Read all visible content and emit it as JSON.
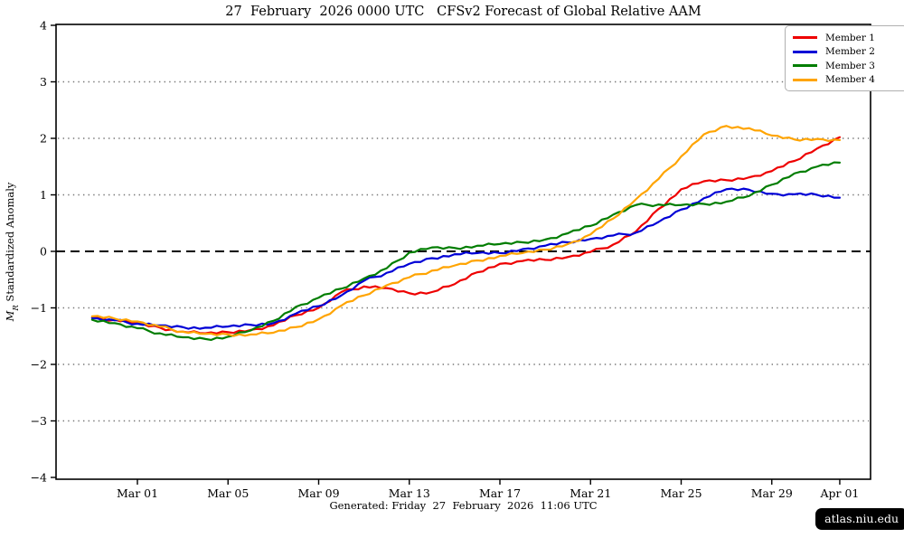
{
  "title": "27  February  2026 0000 UTC   CFSv2 Forecast of Global Relative AAM",
  "footer": "Generated: Friday  27  February  2026  11:06 UTC",
  "badge": "atlas.niu.edu",
  "chart_data": {
    "type": "line",
    "title": "27  February  2026 0000 UTC   CFSv2 Forecast of Global Relative AAM",
    "ylabel": "MR Standardized Anomaly",
    "ylabel_parts": {
      "var": "M",
      "sub": "R",
      "rest": " Standardized Anomaly"
    },
    "ylim": [
      -4,
      4
    ],
    "yticks": [
      4,
      3,
      2,
      1,
      0,
      -1,
      -2,
      -3,
      -4
    ],
    "grid_yvals": [
      3,
      2,
      1,
      -1,
      -2,
      -3
    ],
    "zero_line_y": 0,
    "grid_color": "#777777",
    "zero_line_color": "#000000",
    "x_unit": "days since 27 Feb 2026",
    "x_start_label": "Feb 27",
    "xticks": [
      {
        "day": 2,
        "label": "Mar 01"
      },
      {
        "day": 6,
        "label": "Mar 05"
      },
      {
        "day": 10,
        "label": "Mar 09"
      },
      {
        "day": 14,
        "label": "Mar 13"
      },
      {
        "day": 18,
        "label": "Mar 17"
      },
      {
        "day": 22,
        "label": "Mar 21"
      },
      {
        "day": 26,
        "label": "Mar 25"
      },
      {
        "day": 30,
        "label": "Mar 29"
      },
      {
        "day": 33,
        "label": "Apr 01"
      }
    ],
    "x_days": [
      0,
      1,
      2,
      3,
      4,
      5,
      6,
      7,
      8,
      9,
      10,
      11,
      12,
      13,
      14,
      15,
      16,
      17,
      18,
      19,
      20,
      21,
      22,
      23,
      24,
      25,
      26,
      27,
      28,
      29,
      30,
      31,
      32,
      33
    ],
    "legend_position": "top-right",
    "series": [
      {
        "name": "Member 1",
        "color": "#ee0000",
        "values": [
          -1.17,
          -1.21,
          -1.27,
          -1.35,
          -1.42,
          -1.45,
          -1.43,
          -1.39,
          -1.31,
          -1.13,
          -1.0,
          -0.72,
          -0.62,
          -0.65,
          -0.74,
          -0.72,
          -0.58,
          -0.37,
          -0.22,
          -0.17,
          -0.15,
          -0.1,
          -0.01,
          0.12,
          0.35,
          0.75,
          1.1,
          1.24,
          1.26,
          1.31,
          1.42,
          1.6,
          1.82,
          2.02
        ]
      },
      {
        "name": "Member 2",
        "color": "#0000d6",
        "values": [
          -1.18,
          -1.22,
          -1.28,
          -1.31,
          -1.34,
          -1.35,
          -1.33,
          -1.3,
          -1.27,
          -1.1,
          -0.97,
          -0.78,
          -0.52,
          -0.38,
          -0.22,
          -0.12,
          -0.05,
          -0.03,
          -0.03,
          0.04,
          0.1,
          0.16,
          0.22,
          0.28,
          0.33,
          0.52,
          0.74,
          0.94,
          1.1,
          1.09,
          1.02,
          1.01,
          1.0,
          0.95
        ]
      },
      {
        "name": "Member 3",
        "color": "#007d00",
        "values": [
          -1.21,
          -1.27,
          -1.36,
          -1.45,
          -1.52,
          -1.55,
          -1.51,
          -1.4,
          -1.23,
          -0.98,
          -0.82,
          -0.66,
          -0.48,
          -0.3,
          -0.02,
          0.07,
          0.06,
          0.1,
          0.13,
          0.16,
          0.21,
          0.32,
          0.45,
          0.65,
          0.82,
          0.83,
          0.82,
          0.84,
          0.88,
          0.98,
          1.18,
          1.38,
          1.5,
          1.57
        ]
      },
      {
        "name": "Member 4",
        "color": "#ffa400",
        "values": [
          -1.15,
          -1.19,
          -1.24,
          -1.33,
          -1.42,
          -1.46,
          -1.47,
          -1.47,
          -1.44,
          -1.34,
          -1.2,
          -0.96,
          -0.78,
          -0.6,
          -0.46,
          -0.34,
          -0.25,
          -0.16,
          -0.08,
          -0.03,
          0.03,
          0.13,
          0.3,
          0.58,
          0.92,
          1.28,
          1.68,
          2.07,
          2.22,
          2.18,
          2.05,
          1.98,
          1.99,
          1.97
        ]
      }
    ]
  }
}
